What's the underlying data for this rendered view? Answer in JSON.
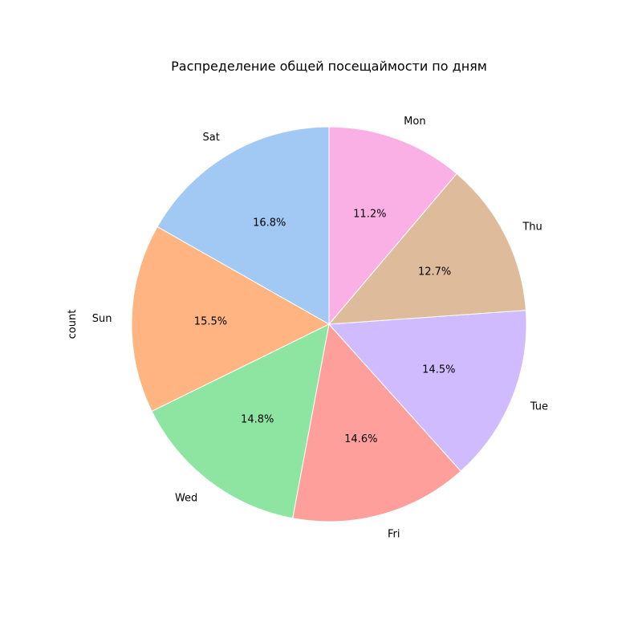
{
  "chart_data": {
    "type": "pie",
    "title": "Распределение общей посещаймости по дням",
    "ylabel": "count",
    "start_angle_deg": 90,
    "direction": "counterclockwise",
    "slices": [
      {
        "label": "Sat",
        "value": 16.8,
        "pct_label": "16.8%",
        "color": "#a1c9f4"
      },
      {
        "label": "Sun",
        "value": 15.5,
        "pct_label": "15.5%",
        "color": "#ffb482"
      },
      {
        "label": "Wed",
        "value": 14.8,
        "pct_label": "14.8%",
        "color": "#8de5a1"
      },
      {
        "label": "Fri",
        "value": 14.6,
        "pct_label": "14.6%",
        "color": "#ff9f9b"
      },
      {
        "label": "Tue",
        "value": 14.5,
        "pct_label": "14.5%",
        "color": "#d0bbff"
      },
      {
        "label": "Thu",
        "value": 12.7,
        "pct_label": "12.7%",
        "color": "#debb9b"
      },
      {
        "label": "Mon",
        "value": 11.2,
        "pct_label": "11.2%",
        "color": "#fab0e4"
      }
    ]
  }
}
